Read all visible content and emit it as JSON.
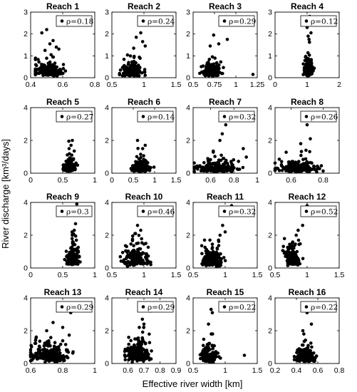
{
  "figure": {
    "ylabel": "River discharge [km³/days]",
    "xlabel": "Effective river width [km]"
  },
  "chart_data": [
    {
      "type": "scatter",
      "title": "Reach 1",
      "legend": "ρ=0.18",
      "xlim": [
        0.4,
        0.8
      ],
      "xticks": [
        "0.4",
        "0.6",
        "0.8"
      ],
      "ylim": [
        0,
        3
      ],
      "yticks": [
        "0",
        "1",
        "2",
        "3"
      ],
      "cluster": {
        "x_center": 0.5,
        "x_spread": 0.045,
        "x_min": 0.43,
        "x_max": 0.66,
        "y_median": 0.3,
        "y_max": 2.2,
        "n": 160
      },
      "outliers": [
        [
          0.5,
          2.2
        ],
        [
          0.47,
          2.05
        ],
        [
          0.54,
          1.7
        ],
        [
          0.52,
          1.55
        ],
        [
          0.56,
          1.4
        ],
        [
          0.49,
          1.25
        ]
      ]
    },
    {
      "type": "scatter",
      "title": "Reach 2",
      "legend": "ρ=0.24",
      "xlim": [
        0.5,
        1.5
      ],
      "xticks": [
        "0.5",
        "1",
        "1.5"
      ],
      "ylim": [
        0,
        3
      ],
      "yticks": [
        "0",
        "1",
        "2",
        "3"
      ],
      "cluster": {
        "x_center": 0.82,
        "x_spread": 0.08,
        "x_min": 0.62,
        "x_max": 1.1,
        "y_median": 0.3,
        "y_max": 2.1,
        "n": 160
      },
      "outliers": [
        [
          0.95,
          2.05
        ],
        [
          0.88,
          1.85
        ],
        [
          0.98,
          1.65
        ],
        [
          1.02,
          1.45
        ],
        [
          0.84,
          1.35
        ]
      ]
    },
    {
      "type": "scatter",
      "title": "Reach 3",
      "legend": "ρ=0.29",
      "xlim": [
        0.5,
        1.25
      ],
      "xticks": [
        "0.5",
        "0.75",
        "1",
        "1.25"
      ],
      "ylim": [
        0,
        3
      ],
      "yticks": [
        "0",
        "1",
        "2",
        "3"
      ],
      "cluster": {
        "x_center": 0.72,
        "x_spread": 0.05,
        "x_min": 0.56,
        "x_max": 0.95,
        "y_median": 0.3,
        "y_max": 2.0,
        "n": 150
      },
      "outliers": [
        [
          0.9,
          1.75
        ],
        [
          0.74,
          1.95
        ],
        [
          0.8,
          1.55
        ],
        [
          1.2,
          0.15
        ],
        [
          0.7,
          1.45
        ]
      ]
    },
    {
      "type": "scatter",
      "title": "Reach 4",
      "legend": "ρ=0.12",
      "xlim": [
        0,
        2
      ],
      "xticks": [
        "0",
        "1",
        "2"
      ],
      "ylim": [
        0,
        3
      ],
      "yticks": [
        "0",
        "1",
        "2",
        "3"
      ],
      "cluster": {
        "x_center": 1.05,
        "x_spread": 0.07,
        "x_min": 0.88,
        "x_max": 1.25,
        "y_median": 0.4,
        "y_max": 2.8,
        "n": 150
      },
      "outliers": [
        [
          1.08,
          2.8
        ],
        [
          1.0,
          2.3
        ],
        [
          1.12,
          2.05
        ],
        [
          1.03,
          1.9
        ],
        [
          1.06,
          1.75
        ]
      ]
    },
    {
      "type": "scatter",
      "title": "Reach 5",
      "legend": "ρ=0.27",
      "xlim": [
        0,
        1
      ],
      "xticks": [
        "0",
        "0.5",
        "1"
      ],
      "ylim": [
        0,
        4
      ],
      "yticks": [
        "0",
        "2",
        "4"
      ],
      "cluster": {
        "x_center": 0.6,
        "x_spread": 0.05,
        "x_min": 0.45,
        "x_max": 0.76,
        "y_median": 0.4,
        "y_max": 2.0,
        "n": 120
      },
      "outliers": [
        [
          0.65,
          2.0
        ],
        [
          0.63,
          1.7
        ],
        [
          0.6,
          1.5
        ],
        [
          0.68,
          1.35
        ]
      ]
    },
    {
      "type": "scatter",
      "title": "Reach 6",
      "legend": "ρ=0.14",
      "xlim": [
        0,
        1.5
      ],
      "xticks": [
        "0",
        "0.5",
        "1",
        "1.5"
      ],
      "ylim": [
        0,
        4
      ],
      "yticks": [
        "0",
        "2",
        "4"
      ],
      "cluster": {
        "x_center": 0.7,
        "x_spread": 0.1,
        "x_min": 0.45,
        "x_max": 1.05,
        "y_median": 0.35,
        "y_max": 1.6,
        "n": 140
      },
      "outliers": [
        [
          0.6,
          2.0
        ],
        [
          0.78,
          1.7
        ],
        [
          0.72,
          1.5
        ]
      ]
    },
    {
      "type": "scatter",
      "title": "Reach 7",
      "legend": "ρ=0.32",
      "xlim": [
        0.45,
        1
      ],
      "xticks": [
        "0.6",
        "0.8",
        "1"
      ],
      "ylim": [
        0,
        4
      ],
      "yticks": [
        "0",
        "2",
        "4"
      ],
      "cluster": {
        "x_center": 0.66,
        "x_spread": 0.09,
        "x_min": 0.46,
        "x_max": 0.93,
        "y_median": 0.3,
        "y_max": 1.6,
        "n": 200
      },
      "outliers": [
        [
          0.73,
          2.95
        ],
        [
          0.7,
          2.4
        ],
        [
          0.68,
          2.0
        ],
        [
          0.88,
          1.5
        ]
      ]
    },
    {
      "type": "scatter",
      "title": "Reach 8",
      "legend": "ρ=0.26",
      "xlim": [
        0.5,
        0.9
      ],
      "xticks": [
        "0.6",
        "0.8"
      ],
      "ylim": [
        0,
        4
      ],
      "yticks": [
        "0",
        "2",
        "4"
      ],
      "cluster": {
        "x_center": 0.64,
        "x_spread": 0.06,
        "x_min": 0.5,
        "x_max": 0.84,
        "y_median": 0.3,
        "y_max": 1.4,
        "n": 200
      },
      "outliers": [
        [
          0.7,
          2.95
        ],
        [
          0.72,
          2.1
        ],
        [
          0.66,
          1.8
        ]
      ]
    },
    {
      "type": "scatter",
      "title": "Reach 9",
      "legend": "ρ=0.3",
      "xlim": [
        0,
        1
      ],
      "xticks": [
        "0",
        "0.5",
        "1"
      ],
      "ylim": [
        0,
        4
      ],
      "yticks": [
        "0",
        "2",
        "4"
      ],
      "cluster": {
        "x_center": 0.66,
        "x_spread": 0.045,
        "x_min": 0.5,
        "x_max": 0.8,
        "y_median": 0.6,
        "y_max": 2.2,
        "n": 130
      },
      "outliers": [
        [
          0.72,
          3.9
        ],
        [
          0.74,
          3.6
        ],
        [
          0.7,
          2.7
        ],
        [
          0.68,
          2.3
        ],
        [
          0.65,
          2.0
        ]
      ]
    },
    {
      "type": "scatter",
      "title": "Reach 10",
      "legend": "ρ=0.46",
      "xlim": [
        0.5,
        1.5
      ],
      "xticks": [
        "0.5",
        "1",
        "1.5"
      ],
      "ylim": [
        0,
        4
      ],
      "yticks": [
        "0",
        "2",
        "4"
      ],
      "cluster": {
        "x_center": 0.88,
        "x_spread": 0.1,
        "x_min": 0.6,
        "x_max": 1.18,
        "y_median": 0.6,
        "y_max": 2.1,
        "n": 170
      },
      "outliers": [
        [
          0.9,
          2.6
        ],
        [
          0.95,
          2.3
        ],
        [
          0.86,
          2.1
        ]
      ]
    },
    {
      "type": "scatter",
      "title": "Reach 11",
      "legend": "ρ=0.32",
      "xlim": [
        0.5,
        1.5
      ],
      "xticks": [
        "0.5",
        "1",
        "1.5"
      ],
      "ylim": [
        0,
        4
      ],
      "yticks": [
        "0",
        "2",
        "4"
      ],
      "cluster": {
        "x_center": 0.8,
        "x_spread": 0.08,
        "x_min": 0.6,
        "x_max": 1.2,
        "y_median": 0.5,
        "y_max": 1.7,
        "n": 170
      },
      "outliers": [
        [
          1.1,
          3.8
        ],
        [
          0.96,
          2.6
        ],
        [
          1.0,
          2.2
        ],
        [
          0.92,
          2.0
        ]
      ]
    },
    {
      "type": "scatter",
      "title": "Reach 12",
      "legend": "ρ=0.52",
      "xlim": [
        0.5,
        1.5
      ],
      "xticks": [
        "0.5",
        "1",
        "1.5"
      ],
      "ylim": [
        0,
        4
      ],
      "yticks": [
        "0",
        "2",
        "4"
      ],
      "cluster": {
        "x_center": 0.76,
        "x_spread": 0.06,
        "x_min": 0.62,
        "x_max": 0.95,
        "y_median": 0.6,
        "y_max": 2.0,
        "n": 120
      },
      "outliers": [
        [
          1.0,
          3.8
        ],
        [
          0.93,
          2.6
        ],
        [
          0.86,
          2.3
        ],
        [
          0.83,
          2.0
        ]
      ]
    },
    {
      "type": "scatter",
      "title": "Reach 13",
      "legend": "ρ=0.29",
      "xlim": [
        0.6,
        1
      ],
      "xticks": [
        "0.6",
        "0.8",
        "1"
      ],
      "ylim": [
        0,
        4
      ],
      "yticks": [
        "0",
        "2",
        "4"
      ],
      "cluster": {
        "x_center": 0.72,
        "x_spread": 0.06,
        "x_min": 0.6,
        "x_max": 0.97,
        "y_median": 0.5,
        "y_max": 1.8,
        "n": 230
      },
      "outliers": [
        [
          0.78,
          3.5
        ],
        [
          0.85,
          3.1
        ],
        [
          0.74,
          2.5
        ],
        [
          0.8,
          2.2
        ],
        [
          0.7,
          2.0
        ]
      ]
    },
    {
      "type": "scatter",
      "title": "Reach 14",
      "legend": "ρ=0.29",
      "xlim": [
        0.5,
        0.9
      ],
      "xticks": [
        "0.6",
        "0.7",
        "0.8",
        "0.9"
      ],
      "ylim": [
        0,
        4
      ],
      "yticks": [
        "0",
        "2",
        "4"
      ],
      "cluster": {
        "x_center": 0.66,
        "x_spread": 0.04,
        "x_min": 0.58,
        "x_max": 0.8,
        "y_median": 0.6,
        "y_max": 2.2,
        "n": 200
      },
      "outliers": [
        [
          0.72,
          3.5
        ],
        [
          0.74,
          3.2
        ],
        [
          0.69,
          2.7
        ],
        [
          0.7,
          2.4
        ]
      ]
    },
    {
      "type": "scatter",
      "title": "Reach 15",
      "legend": "ρ=0.22",
      "xlim": [
        0.5,
        1.5
      ],
      "xticks": [
        "0.5",
        "1",
        "1.5"
      ],
      "ylim": [
        0,
        4
      ],
      "yticks": [
        "0",
        "2",
        "4"
      ],
      "cluster": {
        "x_center": 0.75,
        "x_spread": 0.06,
        "x_min": 0.6,
        "x_max": 1.05,
        "y_median": 0.4,
        "y_max": 1.8,
        "n": 170
      },
      "outliers": [
        [
          0.78,
          3.3
        ],
        [
          0.8,
          3.1
        ],
        [
          0.74,
          2.4
        ],
        [
          1.3,
          0.5
        ]
      ]
    },
    {
      "type": "scatter",
      "title": "Reach 16",
      "legend": "ρ=0.22",
      "xlim": [
        0.2,
        0.8
      ],
      "xticks": [
        "0.2",
        "0.4",
        "0.6",
        "0.8"
      ],
      "ylim": [
        0,
        4
      ],
      "yticks": [
        "0",
        "2",
        "4"
      ],
      "cluster": {
        "x_center": 0.48,
        "x_spread": 0.045,
        "x_min": 0.38,
        "x_max": 0.64,
        "y_median": 0.4,
        "y_max": 1.8,
        "n": 170
      },
      "outliers": [
        [
          0.52,
          3.3
        ],
        [
          0.5,
          3.1
        ],
        [
          0.54,
          2.4
        ],
        [
          0.46,
          2.0
        ]
      ]
    }
  ]
}
